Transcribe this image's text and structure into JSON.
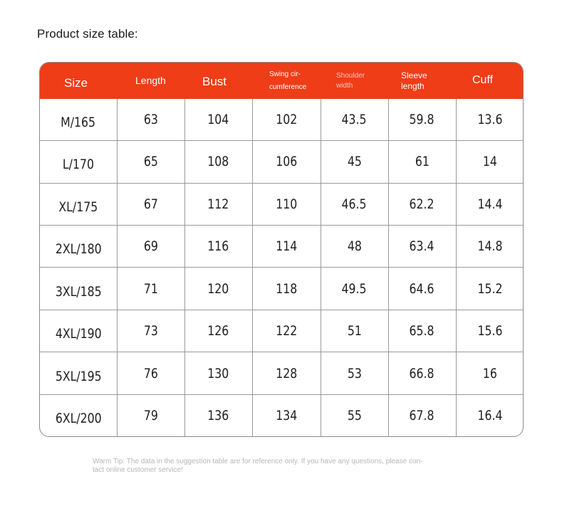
{
  "page": {
    "title": "Product size table:"
  },
  "table": {
    "headers": {
      "size": "Size",
      "length": "Length",
      "bust": "Bust",
      "swing_line1": "Swing cir-",
      "swing_line2": "cumference",
      "shoulder_line1": "Shoulder",
      "shoulder_line2": "width",
      "sleeve_line1": "Sleeve",
      "sleeve_line2": "length",
      "cuff": "Cuff"
    },
    "rows": [
      [
        "M/165",
        "63",
        "104",
        "102",
        "43.5",
        "59.8",
        "13.6"
      ],
      [
        "L/170",
        "65",
        "108",
        "106",
        "45",
        "61",
        "14"
      ],
      [
        "XL/175",
        "67",
        "112",
        "110",
        "46.5",
        "62.2",
        "14.4"
      ],
      [
        "2XL/180",
        "69",
        "116",
        "114",
        "48",
        "63.4",
        "14.8"
      ],
      [
        "3XL/185",
        "71",
        "120",
        "118",
        "49.5",
        "64.6",
        "15.2"
      ],
      [
        "4XL/190",
        "73",
        "126",
        "122",
        "51",
        "65.8",
        "15.6"
      ],
      [
        "5XL/195",
        "76",
        "130",
        "128",
        "53",
        "66.8",
        "16"
      ],
      [
        "6XL/200",
        "79",
        "136",
        "134",
        "55",
        "67.8",
        "16.4"
      ]
    ],
    "header_color": "#ee3d17"
  },
  "footer": {
    "line1": "Warm Tip: The data in the suggestion table are for reference only. If you have any questions, please con-",
    "line2": "tact online customer service!"
  }
}
